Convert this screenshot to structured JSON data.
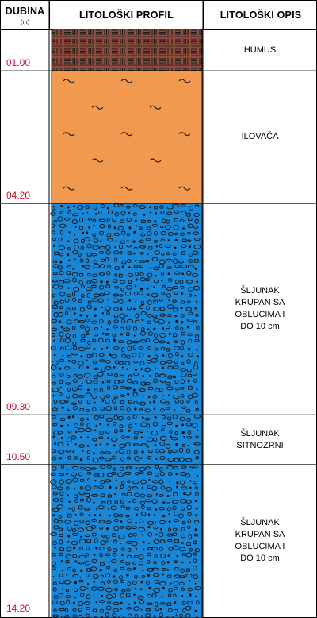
{
  "headers": {
    "depth": "DUBINA",
    "depth_unit": "(m)",
    "profile": "LITOLOŠKI PROFIL",
    "description": "LITOLOŠKI OPIS"
  },
  "layers": [
    {
      "name": "humus",
      "from": 0.0,
      "to": 1.0,
      "depth_label": "01.00",
      "description": "HUMUS",
      "fill": "#8b4a3b",
      "pattern": "humus"
    },
    {
      "name": "ilovaca",
      "from": 1.0,
      "to": 4.2,
      "depth_label": "04.20",
      "description": "ILOVAČA",
      "fill": "#f0994f",
      "pattern": "clay"
    },
    {
      "name": "sljunak-krupan-1",
      "from": 4.2,
      "to": 9.3,
      "depth_label": "09.30",
      "description": "ŠLJUNAK\nKRUPAN SA\nOBLUCIMA I\nDO 10 cm",
      "fill": "#1a87d6",
      "pattern": "gravel"
    },
    {
      "name": "sljunak-sitnozrni",
      "from": 9.3,
      "to": 10.5,
      "depth_label": "10.50",
      "description": "ŠLJUNAK\nSITNOZRNI",
      "fill": "#1a87d6",
      "pattern": "gravel"
    },
    {
      "name": "sljunak-krupan-2",
      "from": 10.5,
      "to": 14.2,
      "depth_label": "14.20",
      "description": "ŠLJUNAK\nKRUPAN SA\nOBLUCIMA I\nDO 10 cm",
      "fill": "#1a87d6",
      "pattern": "gravel"
    }
  ]
}
